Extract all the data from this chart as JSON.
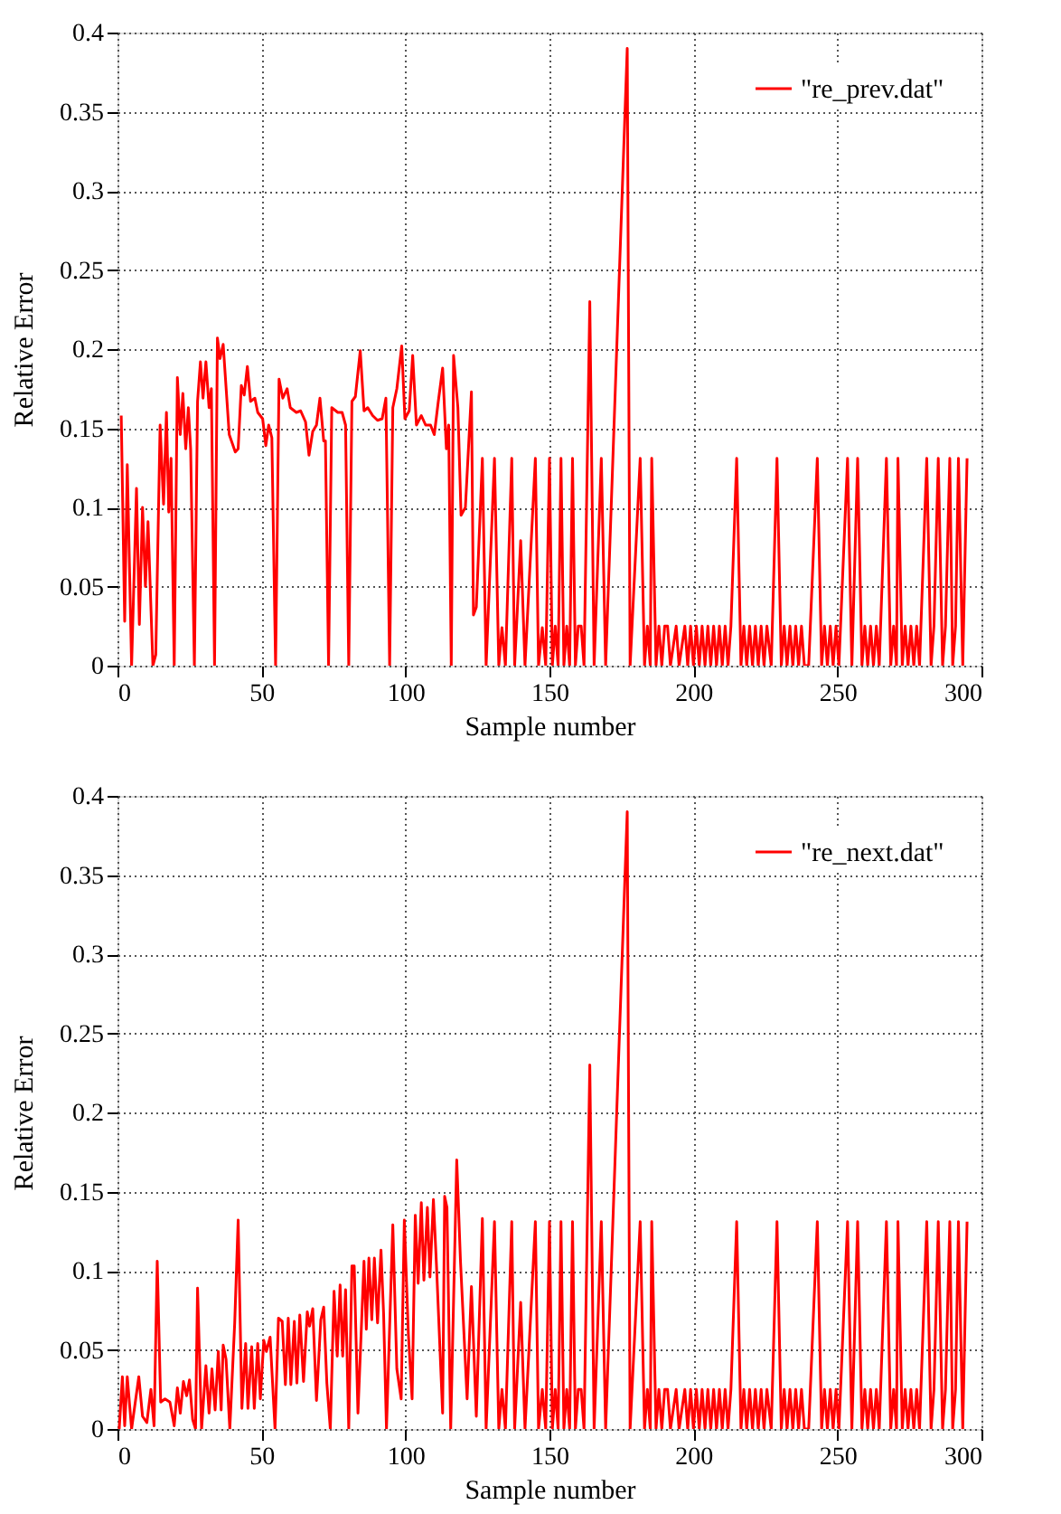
{
  "chart_data": [
    {
      "type": "line",
      "xlabel": "Sample number",
      "ylabel": "Relative Error",
      "xlim": [
        0,
        300
      ],
      "ylim": [
        0,
        0.4
      ],
      "xticks": [
        0,
        50,
        100,
        150,
        200,
        250,
        300
      ],
      "yticks": [
        0,
        0.05,
        0.1,
        0.15,
        0.2,
        0.25,
        0.3,
        0.35,
        0.4
      ],
      "grid": true,
      "legend": "top right",
      "marker": "none",
      "line_style": "solid",
      "series": [
        {
          "name": "\"re_prev.dat\"",
          "color": "#ff0000",
          "x": [
            1.3,
            2.5,
            3.4,
            4.9,
            6.6,
            7.6,
            8.7,
            9.7,
            10.6,
            12.3,
            13.3,
            14.8,
            16,
            17,
            17.8,
            18.6,
            19.7,
            20.8,
            21.8,
            22.7,
            23.7,
            24.6,
            25.4,
            26.7,
            27.8,
            28.8,
            29.7,
            30.7,
            31.8,
            32.6,
            33.7,
            34.7,
            35.6,
            36.7,
            38.8,
            40.9,
            41.9,
            43,
            44,
            45.1,
            46.2,
            47.7,
            48.7,
            50.4,
            51.5,
            52.5,
            53.6,
            54.9,
            56.1,
            57.4,
            58.9,
            60,
            62.1,
            63.6,
            65.3,
            66.5,
            67.8,
            69.1,
            70.3,
            71.6,
            72.2,
            73.3,
            74.4,
            76.5,
            78,
            79.2,
            80.3,
            81.4,
            82.6,
            84.3,
            85.6,
            86.9,
            88.6,
            90.3,
            91.9,
            93.2,
            94.5,
            95.6,
            97,
            98.7,
            99.8,
            101.3,
            102.5,
            103.8,
            105.5,
            107,
            108.7,
            110,
            111.4,
            112.9,
            114.2,
            115,
            115.9,
            116.7,
            118.2,
            119.3,
            120.8,
            122.9,
            123.6,
            124.6,
            126.7,
            128,
            130.9,
            132.4,
            133.5,
            134.7,
            136.9,
            137.9,
            140,
            141.5,
            145.1,
            146.2,
            147.5,
            148.7,
            150,
            151,
            152,
            153,
            154,
            155,
            156,
            157,
            158,
            159,
            160,
            161,
            162,
            164,
            165.5,
            168,
            169.5,
            177,
            178,
            181.5,
            183,
            184,
            185,
            185.5,
            187,
            188,
            189,
            190,
            191,
            192,
            194,
            195,
            197,
            198,
            199,
            200,
            201,
            202,
            203,
            204,
            205,
            206,
            207,
            208,
            209,
            210,
            211,
            212,
            213,
            215,
            216.5,
            217.5,
            218.5,
            219.5,
            220.5,
            221.5,
            222.5,
            223.5,
            224.5,
            225.5,
            227,
            229,
            230.5,
            231.5,
            232.5,
            233.5,
            234.5,
            235.5,
            236.5,
            237.5,
            238.5,
            240,
            243,
            244.5,
            245.5,
            246.5,
            247.5,
            248.5,
            249.5,
            250.5,
            253.5,
            255,
            257,
            258.5,
            259.5,
            260.5,
            261.5,
            262.5,
            263.5,
            264.5,
            267,
            268.5,
            269.5,
            270.5,
            271,
            272.5,
            273.5,
            274.5,
            275.5,
            276.5,
            277.5,
            278.5,
            281,
            282.5,
            283.5,
            285,
            286.5,
            287.5,
            289,
            290,
            291,
            292,
            293.5,
            295
          ],
          "values": [
            0.158,
            0.028,
            0.127,
            0,
            0.112,
            0.026,
            0.1,
            0.05,
            0.091,
            0,
            0.007,
            0.152,
            0.102,
            0.16,
            0.097,
            0.131,
            0,
            0.182,
            0.146,
            0.172,
            0.137,
            0.163,
            0.137,
            0,
            0.167,
            0.192,
            0.169,
            0.192,
            0.163,
            0.175,
            0,
            0.207,
            0.194,
            0.203,
            0.146,
            0.135,
            0.137,
            0.177,
            0.171,
            0.189,
            0.167,
            0.169,
            0.16,
            0.156,
            0.139,
            0.152,
            0.144,
            0,
            0.181,
            0.169,
            0.175,
            0.163,
            0.16,
            0.161,
            0.154,
            0.133,
            0.148,
            0.152,
            0.169,
            0.142,
            0.142,
            0,
            0.163,
            0.16,
            0.16,
            0.152,
            0,
            0.167,
            0.17,
            0.199,
            0.161,
            0.163,
            0.158,
            0.155,
            0.156,
            0.169,
            0,
            0.163,
            0.175,
            0.202,
            0.156,
            0.161,
            0.196,
            0.152,
            0.158,
            0.152,
            0.152,
            0.146,
            0.167,
            0.188,
            0.137,
            0.152,
            0,
            0.196,
            0.163,
            0.095,
            0.1,
            0.173,
            0.032,
            0.037,
            0.131,
            0,
            0.131,
            0,
            0.024,
            0,
            0.131,
            0,
            0.079,
            0,
            0.131,
            0,
            0.024,
            0,
            0.131,
            0,
            0.025,
            0,
            0.131,
            0,
            0.025,
            0,
            0.131,
            0,
            0.025,
            0.025,
            0,
            0.23,
            0,
            0.131,
            0,
            0.39,
            0,
            0.131,
            0,
            0.025,
            0,
            0.131,
            0,
            0.025,
            0,
            0.025,
            0.025,
            0,
            0.025,
            0,
            0.025,
            0,
            0.025,
            0,
            0.025,
            0,
            0.025,
            0,
            0.025,
            0,
            0.025,
            0,
            0.025,
            0,
            0.025,
            0,
            0.025,
            0.131,
            0,
            0.025,
            0,
            0.025,
            0,
            0.025,
            0,
            0.025,
            0,
            0.025,
            0,
            0.131,
            0,
            0.025,
            0,
            0.025,
            0,
            0.025,
            0,
            0.025,
            0,
            0,
            0.131,
            0,
            0.025,
            0,
            0.025,
            0,
            0.025,
            0,
            0.131,
            0,
            0.131,
            0,
            0.025,
            0,
            0.025,
            0,
            0.025,
            0,
            0.131,
            0,
            0.025,
            0,
            0.131,
            0,
            0.025,
            0,
            0.025,
            0,
            0.025,
            0,
            0.131,
            0,
            0.025,
            0.131,
            0,
            0.025,
            0.131,
            0,
            0.025,
            0.131,
            0,
            0.131
          ]
        }
      ]
    },
    {
      "type": "line",
      "xlabel": "Sample number",
      "ylabel": "Relative Error",
      "xlim": [
        0,
        300
      ],
      "ylim": [
        0,
        0.4
      ],
      "xticks": [
        0,
        50,
        100,
        150,
        200,
        250,
        300
      ],
      "yticks": [
        0,
        0.05,
        0.1,
        0.15,
        0.2,
        0.25,
        0.3,
        0.35,
        0.4
      ],
      "grid": true,
      "legend": "top right",
      "marker": "none",
      "line_style": "solid",
      "series": [
        {
          "name": "\"re_next.dat\"",
          "color": "#ff0000",
          "x": [
            0.6,
            1.7,
            2.5,
            3.4,
            4.9,
            7.4,
            8.7,
            10.2,
            11.6,
            12.7,
            13.8,
            15,
            16.5,
            18.2,
            19.7,
            20.8,
            21.8,
            22.9,
            24,
            25,
            26.1,
            27.1,
            27.8,
            29.2,
            30.7,
            31.8,
            32.8,
            33.9,
            35,
            36,
            36.7,
            37.7,
            39,
            40.7,
            41.9,
            43.2,
            44.5,
            45.3,
            46.6,
            47.5,
            48.7,
            49.6,
            50.8,
            51.7,
            53,
            54.7,
            55.9,
            57.2,
            58.3,
            59.3,
            60.2,
            61.4,
            62.3,
            63.3,
            64.6,
            65.9,
            66.7,
            67.8,
            69.1,
            70.6,
            71.6,
            72.7,
            73.9,
            75.2,
            76.3,
            77.3,
            78.2,
            79.2,
            80.3,
            81.4,
            82.2,
            83.5,
            85.6,
            86.4,
            87.3,
            88.3,
            89.2,
            90.3,
            91.5,
            92.4,
            93.4,
            95.6,
            97,
            98.5,
            99.6,
            101,
            102.3,
            103.4,
            104.4,
            105.5,
            106.4,
            107.6,
            108.5,
            109.7,
            110.8,
            112.9,
            113.6,
            114.4,
            115.7,
            117.8,
            119.1,
            121.4,
            122.9,
            124.6,
            126.7,
            128,
            130.9,
            132.4,
            133.5,
            134.7,
            136.9,
            137.9,
            140,
            141.5,
            145.1,
            146.2,
            147.5,
            148.7,
            150,
            151,
            152,
            153,
            154,
            155,
            156,
            157,
            158,
            159,
            160,
            161,
            162,
            164,
            165.5,
            168,
            169.5,
            177,
            178,
            181.5,
            183,
            184,
            185,
            185.5,
            187,
            188,
            189,
            190,
            191,
            192,
            194,
            195,
            197,
            198,
            199,
            200,
            201,
            202,
            203,
            204,
            205,
            206,
            207,
            208,
            209,
            210,
            211,
            212,
            213,
            215,
            216.5,
            217.5,
            218.5,
            219.5,
            220.5,
            221.5,
            222.5,
            223.5,
            224.5,
            225.5,
            227,
            229,
            230.5,
            231.5,
            232.5,
            233.5,
            234.5,
            235.5,
            236.5,
            237.5,
            238.5,
            240,
            243,
            244.5,
            245.5,
            246.5,
            247.5,
            248.5,
            249.5,
            250.5,
            253.5,
            255,
            257,
            258.5,
            259.5,
            260.5,
            261.5,
            262.5,
            263.5,
            264.5,
            267,
            268.5,
            269.5,
            270.5,
            271,
            272.5,
            273.5,
            274.5,
            275.5,
            276.5,
            277.5,
            278.5,
            281,
            282.5,
            283.5,
            285,
            286.5,
            287.5,
            289,
            290,
            291,
            292,
            293.5,
            295
          ],
          "values": [
            0,
            0.033,
            0.002,
            0.033,
            0,
            0.033,
            0.008,
            0.004,
            0.025,
            0.002,
            0.106,
            0.017,
            0.019,
            0.017,
            0.002,
            0.026,
            0.01,
            0.03,
            0.021,
            0.031,
            0.006,
            0,
            0.089,
            0,
            0.04,
            0.01,
            0.038,
            0.012,
            0.049,
            0.012,
            0.053,
            0.044,
            0,
            0.067,
            0.132,
            0.013,
            0.054,
            0.013,
            0.052,
            0.013,
            0.054,
            0.019,
            0.056,
            0.049,
            0.058,
            0,
            0.07,
            0.068,
            0.028,
            0.07,
            0.028,
            0.068,
            0.029,
            0.072,
            0.03,
            0.074,
            0.065,
            0.076,
            0.018,
            0.069,
            0.077,
            0.029,
            0,
            0.087,
            0.046,
            0.091,
            0.046,
            0.088,
            0,
            0.103,
            0.103,
            0.01,
            0.106,
            0.063,
            0.108,
            0.069,
            0.108,
            0.067,
            0.113,
            0.073,
            0,
            0.129,
            0.038,
            0.019,
            0.132,
            0.06,
            0.019,
            0.135,
            0.092,
            0.143,
            0.094,
            0.14,
            0.096,
            0.145,
            0.102,
            0.01,
            0.147,
            0.14,
            0,
            0.17,
            0.106,
            0.019,
            0.09,
            0.008,
            0.133,
            0,
            0.131,
            0,
            0.025,
            0,
            0.131,
            0,
            0.08,
            0,
            0.131,
            0,
            0.025,
            0,
            0.131,
            0,
            0.025,
            0,
            0.131,
            0,
            0.025,
            0,
            0.131,
            0,
            0.025,
            0.025,
            0,
            0.23,
            0,
            0.131,
            0,
            0.39,
            0,
            0.131,
            0,
            0.025,
            0,
            0.131,
            0,
            0.025,
            0,
            0.025,
            0.025,
            0,
            0.025,
            0,
            0.025,
            0,
            0.025,
            0,
            0.025,
            0,
            0.025,
            0,
            0.025,
            0,
            0.025,
            0,
            0.025,
            0,
            0.025,
            0,
            0.025,
            0.131,
            0,
            0.025,
            0,
            0.025,
            0,
            0.025,
            0,
            0.025,
            0,
            0.025,
            0,
            0.131,
            0,
            0.025,
            0,
            0.025,
            0,
            0.025,
            0,
            0.025,
            0,
            0,
            0.131,
            0,
            0.025,
            0,
            0.025,
            0,
            0.025,
            0,
            0.131,
            0,
            0.131,
            0,
            0.025,
            0,
            0.025,
            0,
            0.025,
            0,
            0.131,
            0,
            0.025,
            0,
            0.131,
            0,
            0.025,
            0,
            0.025,
            0,
            0.025,
            0,
            0.131,
            0,
            0.025,
            0.131,
            0,
            0.025,
            0.131,
            0,
            0.025,
            0.131,
            0,
            0.131
          ]
        }
      ]
    }
  ]
}
